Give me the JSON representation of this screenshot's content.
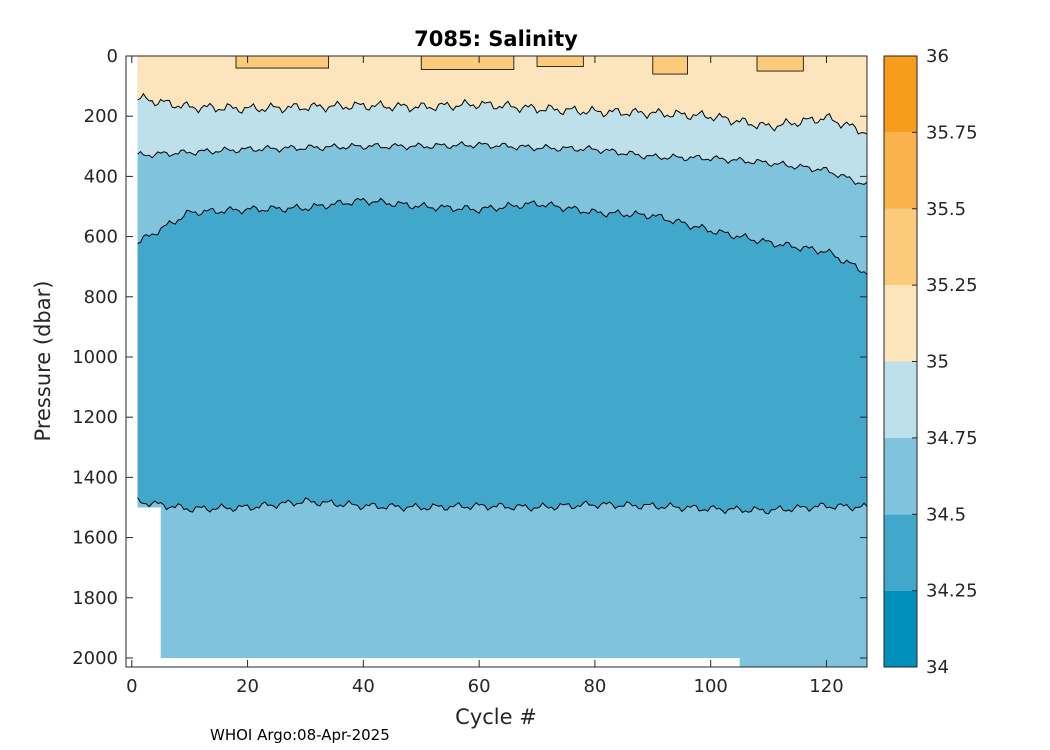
{
  "chart_data": {
    "type": "heatmap",
    "subtype": "filled-contour",
    "title": "7085:  Salinity",
    "xlabel": "Cycle #",
    "ylabel": "Pressure (dbar)",
    "xlim": [
      -1,
      127
    ],
    "ylim": [
      2030,
      0
    ],
    "xticks": [
      0,
      20,
      40,
      60,
      80,
      100,
      120
    ],
    "yticks": [
      0,
      200,
      400,
      600,
      800,
      1000,
      1200,
      1400,
      1600,
      1800,
      2000
    ],
    "colorbar": {
      "ticks": [
        "34",
        "34.25",
        "34.5",
        "34.75",
        "35",
        "35.25",
        "35.5",
        "35.75",
        "36"
      ],
      "levels": [
        34,
        34.25,
        34.5,
        34.75,
        35,
        35.25,
        35.5,
        35.75,
        36
      ],
      "colors": [
        "#0090bb",
        "#41a8cc",
        "#80c3dd",
        "#bee0eb",
        "#fce5bd",
        "#fbca7a",
        "#fab24d",
        "#f89c1e"
      ]
    },
    "levels_present": [
      {
        "range": "34.25-34.5",
        "color": "#41a8cc"
      },
      {
        "range": "34.5-34.75",
        "color": "#80c3dd"
      },
      {
        "range": "34.75-35",
        "color": "#bee0eb"
      },
      {
        "range": "35-35.25",
        "color": "#fce5bd"
      },
      {
        "range": "35.25-35.5",
        "color": "#fbca7a"
      }
    ],
    "contour_depths": {
      "cycles": [
        1,
        10,
        20,
        30,
        40,
        50,
        60,
        70,
        80,
        90,
        100,
        110,
        120,
        127
      ],
      "iso_35_0": [
        140,
        170,
        175,
        170,
        165,
        170,
        160,
        175,
        185,
        190,
        200,
        235,
        205,
        255
      ],
      "iso_34_75": [
        330,
        320,
        310,
        305,
        300,
        300,
        295,
        305,
        310,
        335,
        340,
        355,
        380,
        430
      ],
      "iso_34_5": [
        620,
        520,
        510,
        505,
        480,
        500,
        510,
        490,
        520,
        530,
        580,
        620,
        650,
        720
      ],
      "iso_34_5_lower": [
        1480,
        1505,
        1500,
        1480,
        1495,
        1500,
        1495,
        1500,
        1490,
        1495,
        1505,
        1510,
        1495,
        1500
      ]
    },
    "data_extent": {
      "start_cycle": 1,
      "end_cycle": 127,
      "profile_bottom_dbar": 2000,
      "profile_bottom_dbar_late": 2030
    }
  },
  "footer": "WHOI Argo:08-Apr-2025"
}
